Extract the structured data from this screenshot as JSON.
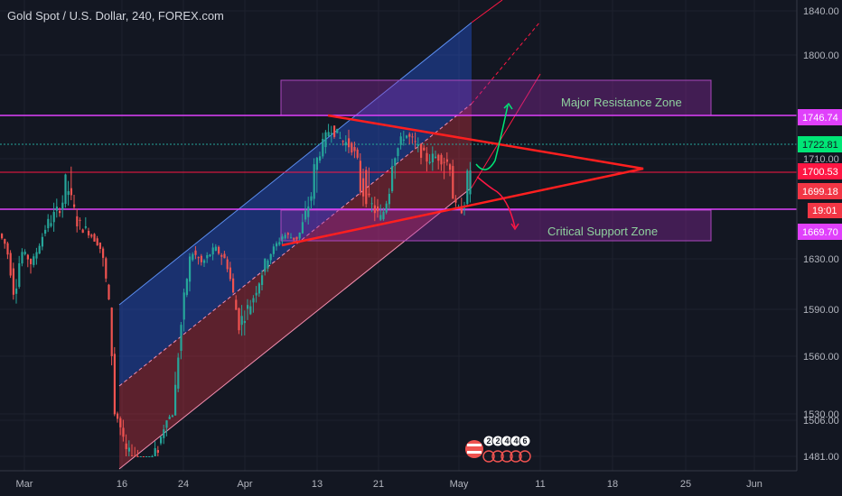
{
  "chart_data": {
    "type": "candlestick",
    "title": "Gold Spot / U.S. Dollar, 240, FOREX.com",
    "yticks": [
      1840,
      1800,
      1710,
      1630,
      1590,
      1560,
      1530,
      1506,
      1481
    ],
    "yticks_labels": [
      "1840.00",
      "1800.00",
      "1710.00",
      "1630.00",
      "1590.00",
      "1560.00",
      "1530.00",
      "1506.00",
      "1481.00"
    ],
    "xticks": [
      "Mar",
      "16",
      "24",
      "Apr",
      "13",
      "21",
      "May",
      "11",
      "18",
      "25",
      "Jun"
    ],
    "price_tags": [
      {
        "value": 1746.74,
        "label": "1746.74",
        "color": "#e040fb",
        "text_color": "#ffffff"
      },
      {
        "value": 1722.81,
        "label": "1722.81",
        "color": "#00e676",
        "text_color": "#131722"
      },
      {
        "value": 1700.53,
        "label": "1700.53",
        "color": "#ff1744",
        "text_color": "#ffffff"
      },
      {
        "value": 1699.18,
        "label": "1699.18",
        "color": "#f23645",
        "text_color": "#ffffff"
      },
      {
        "value": 1669.7,
        "label": "1669.70",
        "color": "#e040fb",
        "text_color": "#ffffff"
      }
    ],
    "countdown_tag": {
      "label": "19:01",
      "color": "#f23645"
    },
    "annotations": [
      {
        "text": "Major Resistance Zone",
        "zone": [
          1746,
          1774
        ]
      },
      {
        "text": "Critical Support Zone",
        "zone": [
          1669,
          1692
        ]
      }
    ],
    "badge_digits": [
      "2",
      "2",
      "4",
      "4",
      "6"
    ],
    "colors": {
      "up": "#26a69a",
      "down": "#ef5350",
      "channel_upper": "#2962ff",
      "channel_lower": "#f23645",
      "triangle": "#ff1f1f",
      "zone": "#9c27b0"
    }
  }
}
